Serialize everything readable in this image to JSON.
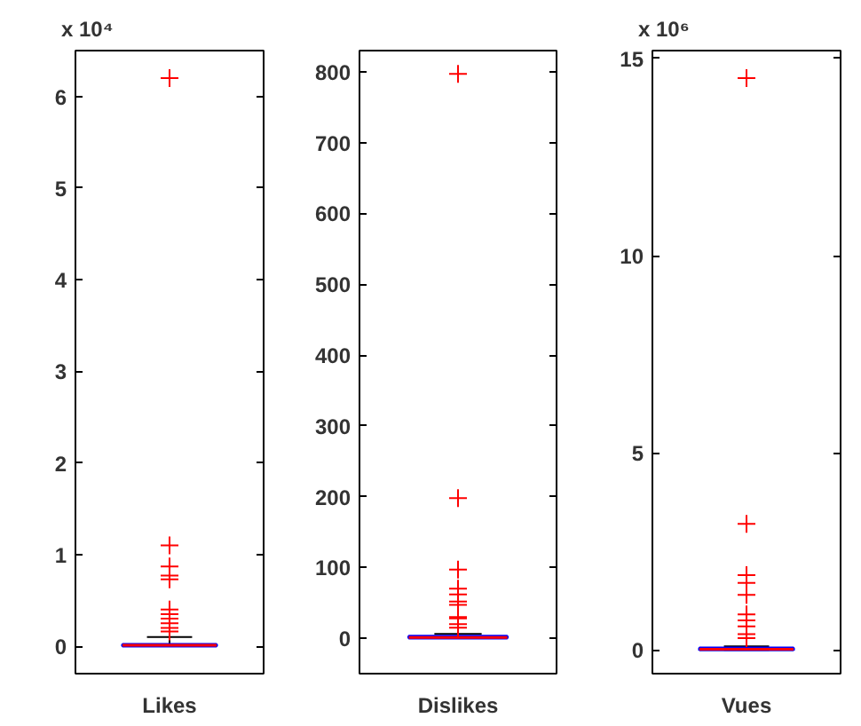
{
  "chart_data": [
    {
      "type": "box",
      "categories": [
        "Likes"
      ],
      "color": "#0000ff",
      "marker": "cross",
      "annotations": [
        "x 10⁴"
      ],
      "boxes": [
        {
          "low": 0,
          "q1": 0,
          "median": 0.01,
          "q3": 0.02,
          "high": 0.1,
          "outliers": [
            6.2,
            1.1,
            0.87,
            0.77,
            0.73,
            0.4,
            0.35,
            0.3,
            0.25,
            0.2,
            0.16
          ]
        }
      ],
      "ylim": [
        -0.3,
        6.5
      ],
      "yticks": [
        0,
        1,
        2,
        3,
        4,
        5,
        6
      ]
    },
    {
      "type": "box",
      "categories": [
        "Dislikes"
      ],
      "color": "#0000ff",
      "marker": "cross",
      "boxes": [
        {
          "low": 0,
          "q1": 0,
          "median": 1,
          "q3": 3,
          "high": 6,
          "outliers": [
            797,
            198,
            97,
            70,
            62,
            52,
            47,
            30,
            28,
            20,
            15
          ]
        }
      ],
      "ylim": [
        -50,
        830
      ],
      "yticks": [
        0,
        100,
        200,
        300,
        400,
        500,
        600,
        700,
        800
      ]
    },
    {
      "type": "box",
      "categories": [
        "Vues"
      ],
      "color": "#0000ff",
      "marker": "cross",
      "annotations": [
        "x 10⁶"
      ],
      "boxes": [
        {
          "low": 0,
          "q1": 0,
          "median": 0.02,
          "q3": 0.05,
          "high": 0.09,
          "outliers": [
            14.5,
            3.2,
            1.9,
            1.7,
            1.4,
            0.9,
            0.75,
            0.6,
            0.4,
            0.3
          ]
        }
      ],
      "ylim": [
        -0.6,
        15.2
      ],
      "yticks": [
        0,
        5,
        10,
        15
      ]
    }
  ]
}
